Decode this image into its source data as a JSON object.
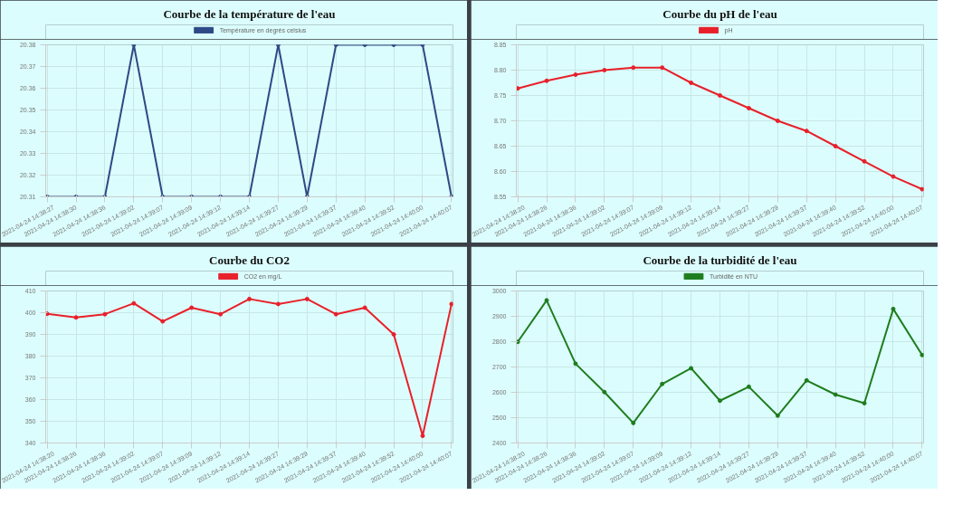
{
  "chart_data": [
    {
      "type": "line",
      "title": "Courbe de la température de l'eau",
      "categories": [
        "2021-04-24 14:38:27",
        "2021-04-24 14:38:30",
        "2021-04-24 14:38:36",
        "2021-04-24 14:39:02",
        "2021-04-24 14:39:07",
        "2021-04-24 14:39:09",
        "2021-04-24 14:39:12",
        "2021-04-24 14:39:14",
        "2021-04-24 14:39:27",
        "2021-04-24 14:39:29",
        "2021-04-24 14:39:37",
        "2021-04-24 14:39:40",
        "2021-04-24 14:39:52",
        "2021-04-24 14:40:00",
        "2021-04-24 14:40:07"
      ],
      "series": [
        {
          "name": "Température en degrés celsius",
          "color": "#2e4a86",
          "values": [
            20.31,
            20.31,
            20.31,
            20.38,
            20.31,
            20.31,
            20.31,
            20.31,
            20.38,
            20.31,
            20.38,
            20.38,
            20.38,
            20.38,
            20.31
          ]
        }
      ],
      "ylim": [
        20.31,
        20.38
      ],
      "yticks": [
        {
          "value": 20.31,
          "label": "20.31"
        },
        {
          "value": 20.32,
          "label": "20.32"
        },
        {
          "value": 20.33,
          "label": "20.33"
        },
        {
          "value": 20.34,
          "label": "20.34"
        },
        {
          "value": 20.35,
          "label": "20.35"
        },
        {
          "value": 20.36,
          "label": "20.36"
        },
        {
          "value": 20.37,
          "label": "20.37"
        },
        {
          "value": 20.38,
          "label": "20.38"
        }
      ],
      "grid": true,
      "legend": "top",
      "marker": "circle"
    },
    {
      "type": "line",
      "title": "Courbe du pH de l'eau",
      "categories": [
        "2021-04-24 14:38:20",
        "2021-04-24 14:38:26",
        "2021-04-24 14:38:36",
        "2021-04-24 14:39:02",
        "2021-04-24 14:39:07",
        "2021-04-24 14:39:09",
        "2021-04-24 14:39:12",
        "2021-04-24 14:39:14",
        "2021-04-24 14:39:27",
        "2021-04-24 14:39:29",
        "2021-04-24 14:39:37",
        "2021-04-24 14:39:40",
        "2021-04-24 14:39:52",
        "2021-04-24 14:40:00",
        "2021-04-24 14:40:07"
      ],
      "series": [
        {
          "name": "pH",
          "color": "#e8202a",
          "values": [
            8.764,
            8.779,
            8.791,
            8.8,
            8.805,
            8.805,
            8.775,
            8.75,
            8.725,
            8.7,
            8.68,
            8.65,
            8.62,
            8.59,
            8.565
          ]
        }
      ],
      "ylim": [
        8.55,
        8.85
      ],
      "yticks": [
        {
          "value": 8.55,
          "label": "8.55"
        },
        {
          "value": 8.6,
          "label": "8.60"
        },
        {
          "value": 8.65,
          "label": "8.65"
        },
        {
          "value": 8.7,
          "label": "8.70"
        },
        {
          "value": 8.75,
          "label": "8.75"
        },
        {
          "value": 8.8,
          "label": "8.80"
        },
        {
          "value": 8.85,
          "label": "8.85"
        }
      ],
      "grid": true,
      "legend": "top",
      "marker": "circle"
    },
    {
      "type": "line",
      "title": "Courbe du CO2",
      "categories": [
        "2021-04-24 14:38:20",
        "2021-04-24 14:38:26",
        "2021-04-24 14:38:36",
        "2021-04-24 14:39:02",
        "2021-04-24 14:39:07",
        "2021-04-24 14:39:09",
        "2021-04-24 14:39:12",
        "2021-04-24 14:39:14",
        "2021-04-24 14:39:27",
        "2021-04-24 14:39:29",
        "2021-04-24 14:39:37",
        "2021-04-24 14:39:40",
        "2021-04-24 14:39:52",
        "2021-04-24 14:40:00",
        "2021-04-24 14:40:07"
      ],
      "series": [
        {
          "name": "CO2 en mg/L",
          "color": "#e8202a",
          "values": [
            399.5,
            397.8,
            399.3,
            404.3,
            396,
            402.3,
            399.3,
            406.3,
            404,
            406.3,
            399.3,
            402.3,
            390,
            343.3,
            404
          ]
        }
      ],
      "ylim": [
        340,
        410
      ],
      "yticks": [
        340,
        350,
        360,
        370,
        380,
        390,
        400,
        410
      ],
      "grid": true,
      "legend": "top",
      "marker": "circle"
    },
    {
      "type": "line",
      "title": "Courbe de la turbidité de l'eau",
      "categories": [
        "2021-04-24 14:38:20",
        "2021-04-24 14:38:26",
        "2021-04-24 14:38:36",
        "2021-04-24 14:39:02",
        "2021-04-24 14:39:07",
        "2021-04-24 14:39:09",
        "2021-04-24 14:39:12",
        "2021-04-24 14:39:14",
        "2021-04-24 14:39:27",
        "2021-04-24 14:39:29",
        "2021-04-24 14:39:37",
        "2021-04-24 14:39:40",
        "2021-04-24 14:39:52",
        "2021-04-24 14:40:00",
        "2021-04-24 14:40:07"
      ],
      "series": [
        {
          "name": "Turbidité en NTU",
          "color": "#1e7d1e",
          "values": [
            2799,
            2963,
            2713,
            2601,
            2479,
            2633,
            2695,
            2567,
            2622,
            2508,
            2647,
            2591,
            2557,
            2929,
            2747
          ]
        }
      ],
      "ylim": [
        2400,
        3000
      ],
      "yticks": [
        2400,
        2500,
        2600,
        2700,
        2800,
        2900,
        3000
      ],
      "grid": true,
      "legend": "top",
      "marker": "circle"
    }
  ]
}
